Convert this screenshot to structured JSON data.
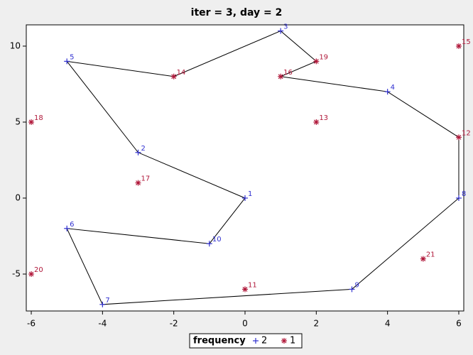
{
  "chart_data": {
    "type": "scatter",
    "title": "iter = 3, day = 2",
    "legend_title": "frequency",
    "legend": "bottom",
    "xlim": [
      -6.14,
      6.14
    ],
    "ylim": [
      -7.43,
      11.4
    ],
    "xticks": [
      -6,
      -4,
      -2,
      0,
      2,
      4,
      6
    ],
    "yticks": [
      -5,
      0,
      5,
      10
    ],
    "series": [
      {
        "name": "2",
        "color": "#2f2fd0",
        "marker": "plus",
        "x": [
          0,
          -3,
          1,
          4,
          -5,
          -5,
          -4,
          6,
          3,
          -1
        ],
        "y": [
          0,
          3,
          11,
          7,
          9,
          -2,
          -7,
          0,
          -6,
          -3
        ],
        "labels": [
          1,
          2,
          3,
          4,
          5,
          6,
          7,
          8,
          9,
          10
        ]
      },
      {
        "name": "1",
        "color": "#b0183a",
        "marker": "star",
        "x": [
          0,
          6,
          2,
          -2,
          6,
          1,
          -3,
          -6,
          2,
          -6,
          5
        ],
        "y": [
          -6,
          4,
          5,
          8,
          10,
          8,
          1,
          5,
          9,
          -5,
          -4
        ],
        "labels": [
          11,
          12,
          13,
          14,
          15,
          16,
          17,
          18,
          19,
          20,
          21
        ]
      }
    ],
    "route": [
      5,
      14,
      3,
      19,
      16,
      4,
      12,
      8,
      9,
      7,
      6,
      10,
      1,
      2,
      5
    ]
  }
}
